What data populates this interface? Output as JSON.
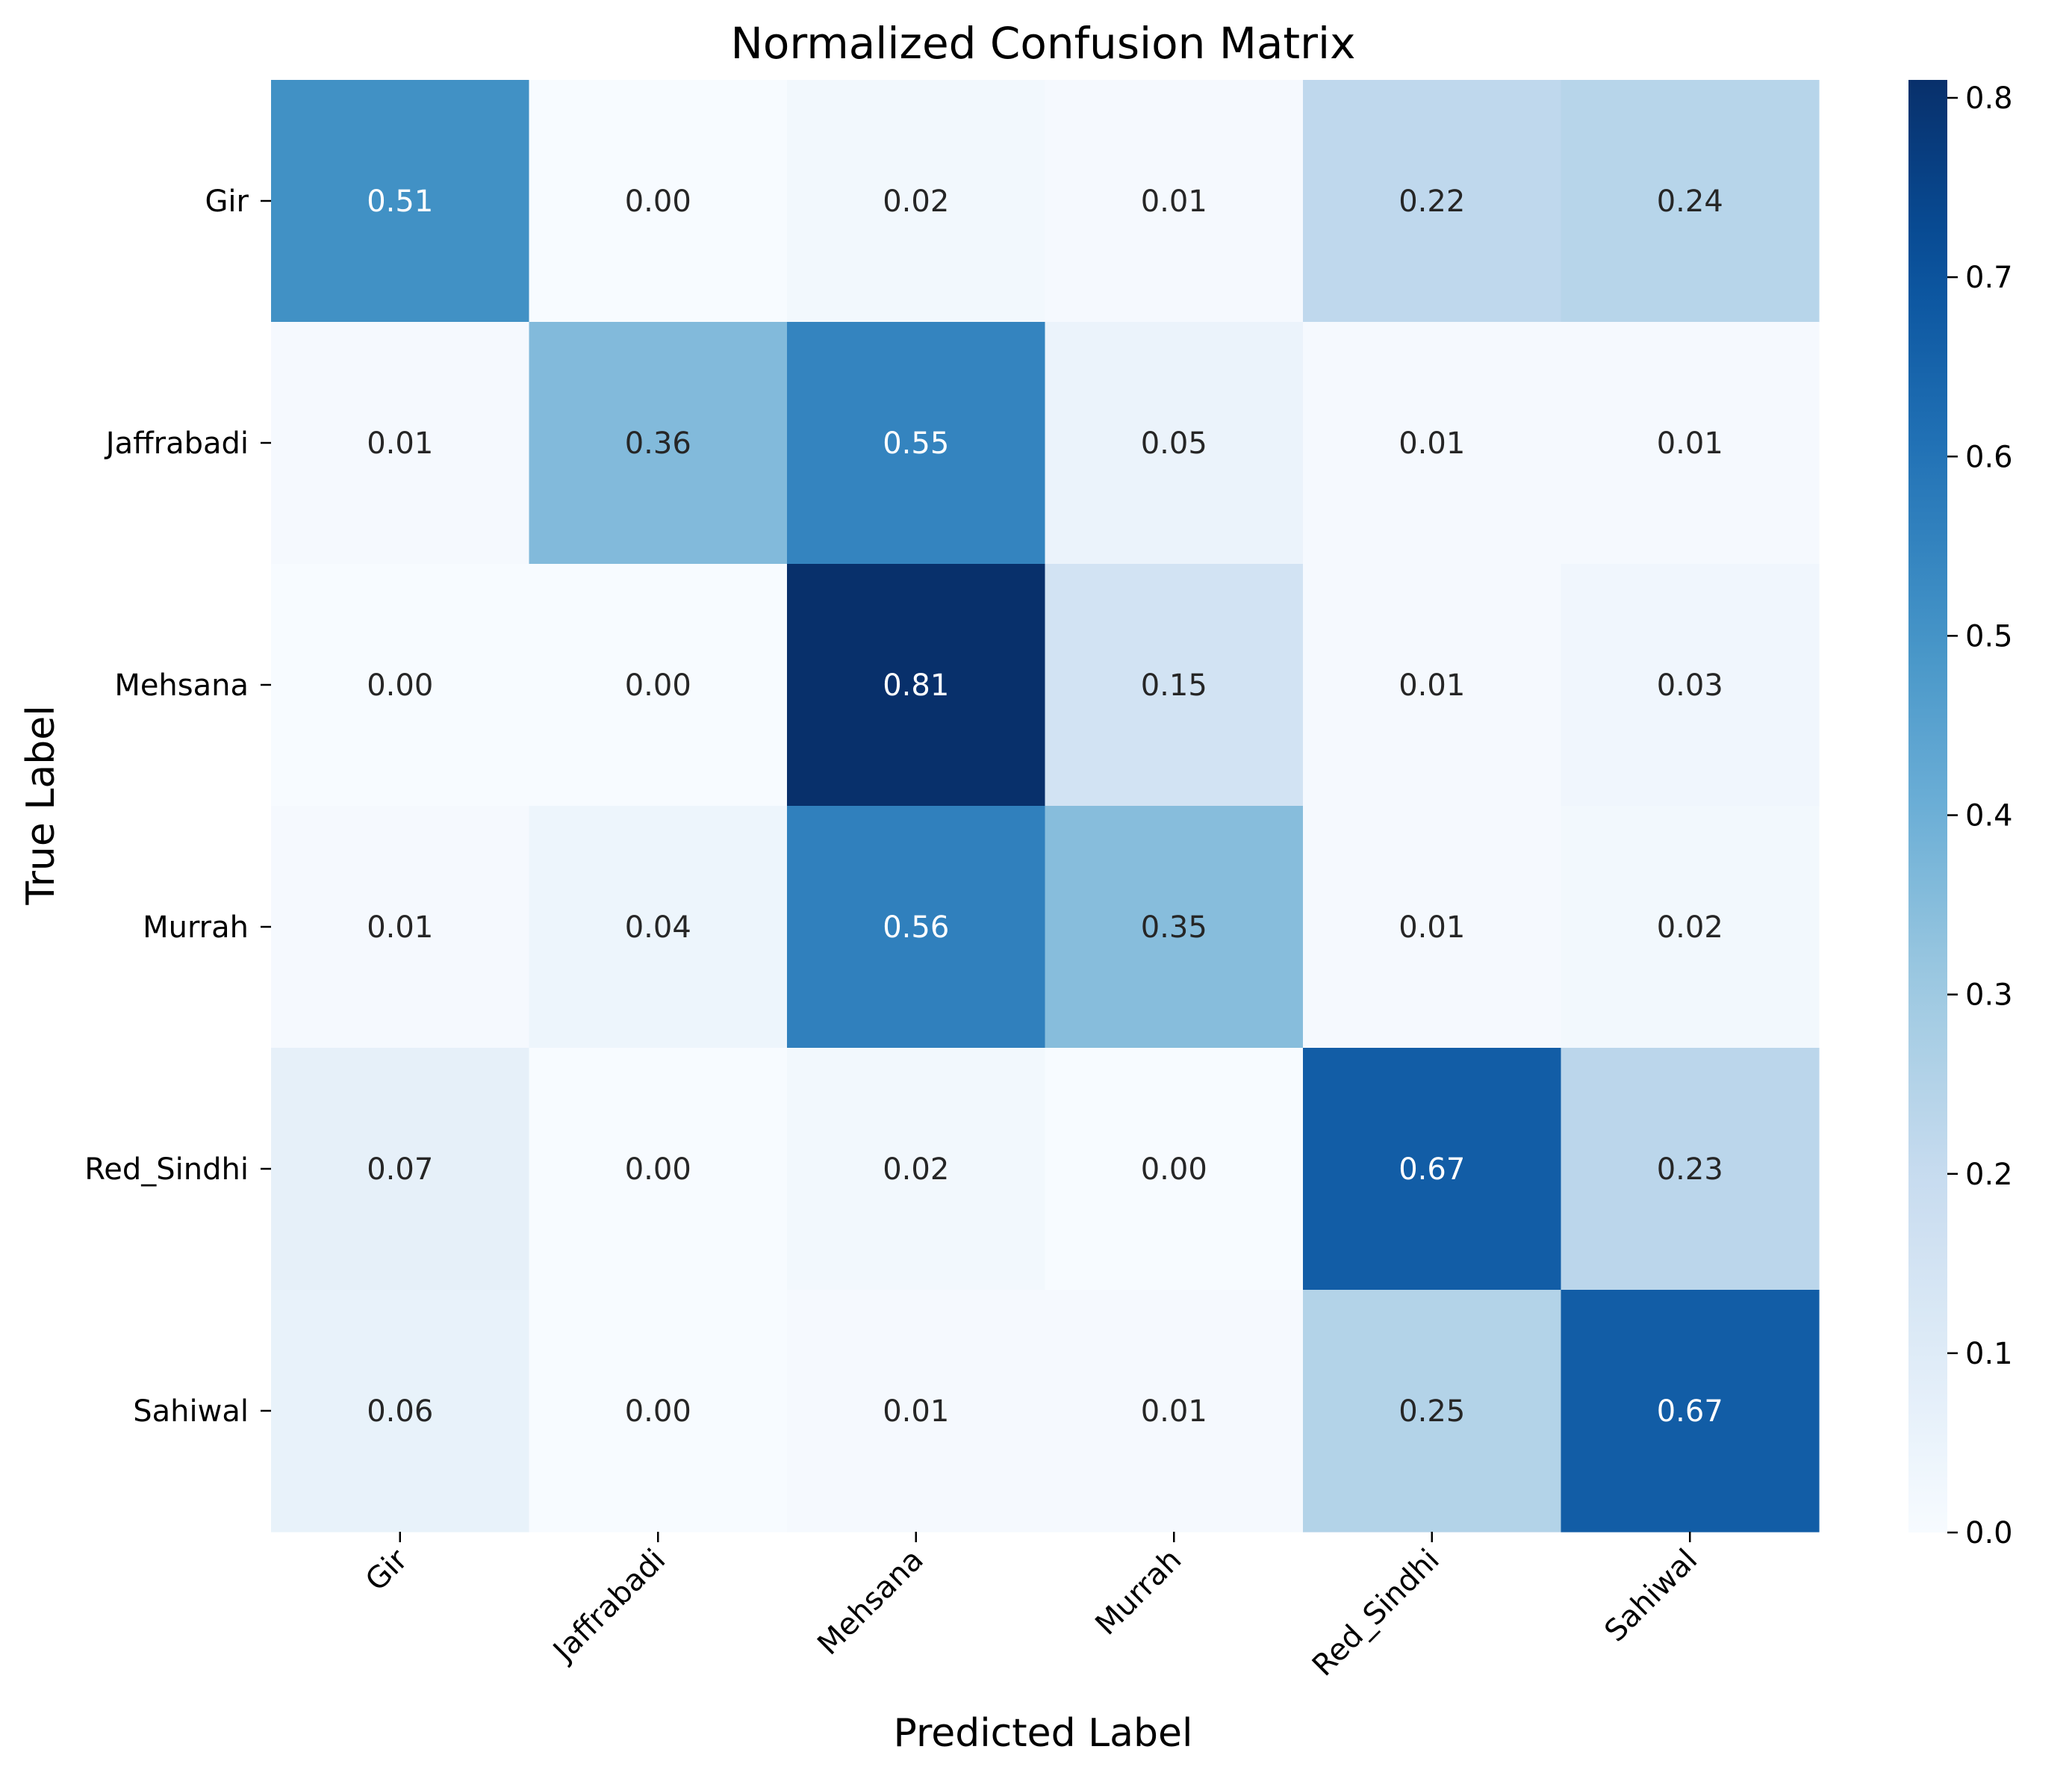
{
  "chart_data": {
    "type": "heatmap",
    "title": "Normalized Confusion Matrix",
    "xlabel": "Predicted Label",
    "ylabel": "True Label",
    "x_categories": [
      "Gir",
      "Jaffrabadi",
      "Mehsana",
      "Murrah",
      "Red_Sindhi",
      "Sahiwal"
    ],
    "y_categories": [
      "Gir",
      "Jaffrabadi",
      "Mehsana",
      "Murrah",
      "Red_Sindhi",
      "Sahiwal"
    ],
    "values": [
      [
        0.51,
        0.0,
        0.02,
        0.01,
        0.22,
        0.24
      ],
      [
        0.01,
        0.36,
        0.55,
        0.05,
        0.01,
        0.01
      ],
      [
        0.0,
        0.0,
        0.81,
        0.15,
        0.01,
        0.03
      ],
      [
        0.01,
        0.04,
        0.56,
        0.35,
        0.01,
        0.02
      ],
      [
        0.07,
        0.0,
        0.02,
        0.0,
        0.67,
        0.23
      ],
      [
        0.06,
        0.0,
        0.01,
        0.01,
        0.25,
        0.67
      ]
    ],
    "value_format": "0.00",
    "colormap": "Blues",
    "colorbar": {
      "range": [
        0,
        0.81
      ],
      "ticks": [
        0.0,
        0.1,
        0.2,
        0.3,
        0.4,
        0.5,
        0.6,
        0.7,
        0.8
      ],
      "tick_labels": [
        "0.0",
        "0.1",
        "0.2",
        "0.3",
        "0.4",
        "0.5",
        "0.6",
        "0.7",
        "0.8"
      ]
    },
    "x_tick_rotation": 45,
    "grid": false
  }
}
